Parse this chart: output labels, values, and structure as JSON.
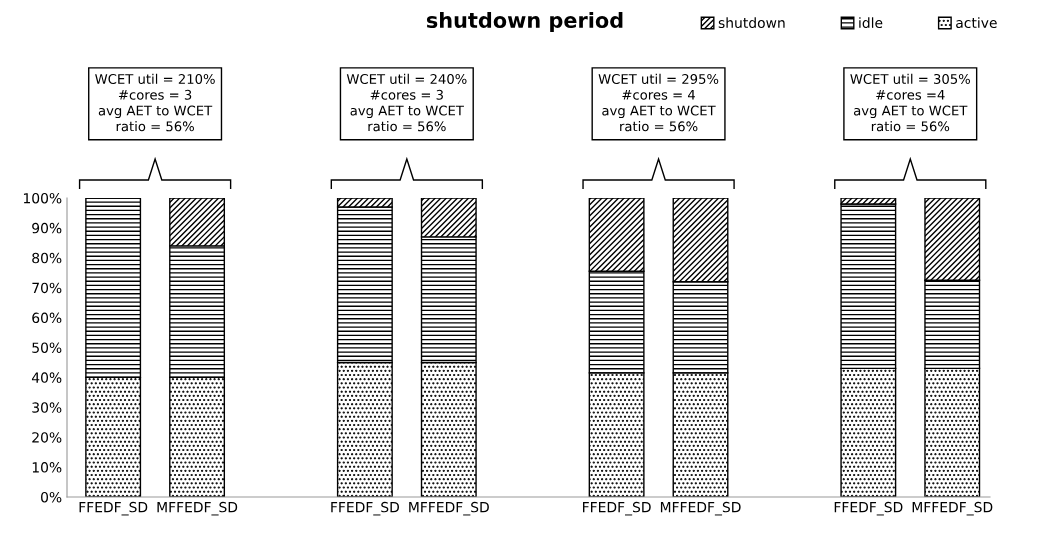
{
  "chart_data": {
    "type": "bar",
    "stacked": true,
    "title": "shutdown period",
    "categories": [
      "FFEDF_SD",
      "MFFEDF_SD",
      null,
      "FFEDF_SD",
      "MFFEDF_SD",
      null,
      "FFEDF_SD",
      "MFFEDF_SD",
      null,
      "FFEDF_SD",
      "MFFEDF_SD"
    ],
    "series": [
      {
        "name": "active",
        "color": "#000000",
        "values": [
          40,
          40,
          null,
          45,
          45,
          null,
          41.5,
          41.5,
          null,
          43,
          43
        ]
      },
      {
        "name": "idle",
        "color": "#000000",
        "values": [
          60,
          44,
          null,
          52,
          42,
          null,
          34,
          30.5,
          null,
          55,
          29.5
        ]
      },
      {
        "name": "shutdown",
        "color": "#000000",
        "values": [
          0,
          16,
          null,
          3,
          13,
          null,
          24.5,
          28,
          null,
          2,
          27.5
        ]
      }
    ],
    "ylim": [
      0,
      100
    ],
    "yticks": [
      {
        "value": 0,
        "label": "0%"
      },
      {
        "value": 10,
        "label": "10%"
      },
      {
        "value": 20,
        "label": "20%"
      },
      {
        "value": 30,
        "label": "30%"
      },
      {
        "value": 40,
        "label": "40%"
      },
      {
        "value": 50,
        "label": "50%"
      },
      {
        "value": 60,
        "label": "60%"
      },
      {
        "value": 70,
        "label": "70%"
      },
      {
        "value": 80,
        "label": "80%"
      },
      {
        "value": 90,
        "label": "90%"
      },
      {
        "value": 100,
        "label": "100%"
      }
    ],
    "grid": false,
    "legend": "top right",
    "annotations": [
      "WCET util = 210%\n#cores = 3\navg AET to WCET\nratio = 56%",
      "WCET util = 240%\n#cores = 3\navg AET to WCET\nratio = 56%",
      "WCET util = 295%\n#cores = 4\navg AET to WCET\nratio = 56%",
      "WCET util = 305%\n#cores =4\navg AET to WCET\nratio = 56%"
    ]
  }
}
